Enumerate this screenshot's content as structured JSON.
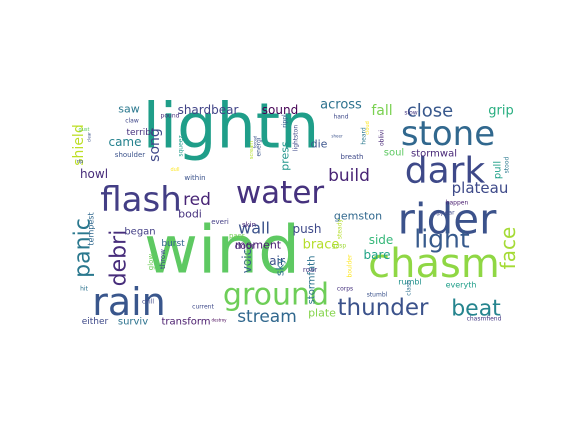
{
  "word_cloud": {
    "words": [
      {
        "text": "wind",
        "color": "#5ec962"
      },
      {
        "text": "lightn",
        "color": "#1f9e89"
      },
      {
        "text": "rider",
        "color": "#3b528b"
      },
      {
        "text": "chasm",
        "color": "#8fd744"
      },
      {
        "text": "stone",
        "color": "#31688e"
      },
      {
        "text": "dark",
        "color": "#3e4989"
      },
      {
        "text": "rain",
        "color": "#39568c"
      },
      {
        "text": "water",
        "color": "#46327e"
      },
      {
        "text": "flash",
        "color": "#433e85"
      },
      {
        "text": "ground",
        "color": "#6ece58"
      },
      {
        "text": "light",
        "color": "#375a8c"
      },
      {
        "text": "thunder",
        "color": "#3b528b"
      },
      {
        "text": "beat",
        "color": "#25848e"
      },
      {
        "text": "panic",
        "color": "#2a788e"
      },
      {
        "text": "debri",
        "color": "#472d7b"
      },
      {
        "text": "face",
        "color": "#a5db36"
      },
      {
        "text": "stream",
        "color": "#31688e"
      },
      {
        "text": "build",
        "color": "#482475"
      },
      {
        "text": "close",
        "color": "#38588c"
      },
      {
        "text": "plateau",
        "color": "#3e4a89"
      },
      {
        "text": "red",
        "color": "#482576"
      },
      {
        "text": "wall",
        "color": "#3b528b"
      },
      {
        "text": "push",
        "color": "#3e4989"
      },
      {
        "text": "shield",
        "color": "#bddf26"
      },
      {
        "text": "fall",
        "color": "#7ad151"
      },
      {
        "text": "grip",
        "color": "#28ae80"
      },
      {
        "text": "across",
        "color": "#2c728e"
      },
      {
        "text": "sound",
        "color": "#440154"
      },
      {
        "text": "shardbear",
        "color": "#414487"
      },
      {
        "text": "saw",
        "color": "#2a788e"
      },
      {
        "text": "song",
        "color": "#3f4788"
      },
      {
        "text": "came",
        "color": "#26828e"
      },
      {
        "text": "howl",
        "color": "#472c7a"
      },
      {
        "text": "began",
        "color": "#433e85"
      },
      {
        "text": "bodi",
        "color": "#46327e"
      },
      {
        "text": "moment",
        "color": "#482071"
      },
      {
        "text": "brace",
        "color": "#b5de2b"
      },
      {
        "text": "gemston",
        "color": "#31688e"
      },
      {
        "text": "side",
        "color": "#35b779"
      },
      {
        "text": "bare",
        "color": "#20a386"
      },
      {
        "text": "air",
        "color": "#3c4f8a"
      },
      {
        "text": "voic",
        "color": "#375b8d"
      },
      {
        "text": "sky",
        "color": "#2d708e"
      },
      {
        "text": "die",
        "color": "#3a548c"
      },
      {
        "text": "press",
        "color": "#1f958b"
      },
      {
        "text": "pull",
        "color": "#1fa088"
      },
      {
        "text": "stormfath",
        "color": "#2c728e"
      },
      {
        "text": "plate",
        "color": "#84d44b"
      },
      {
        "text": "surviv",
        "color": "#2c728e"
      },
      {
        "text": "transform",
        "color": "#481a6c"
      },
      {
        "text": "either",
        "color": "#3e4989"
      },
      {
        "text": "stormwal",
        "color": "#482878"
      },
      {
        "text": "soul",
        "color": "#5ec962"
      },
      {
        "text": "burst",
        "color": "#33638d"
      },
      {
        "text": "tempest",
        "color": "#31688e"
      },
      {
        "text": "door",
        "color": "#482576"
      },
      {
        "text": "roar",
        "color": "#453781"
      },
      {
        "text": "rumbl",
        "color": "#21918c"
      },
      {
        "text": "terribl",
        "color": "#46307e"
      },
      {
        "text": "glow",
        "color": "#6ece58"
      },
      {
        "text": "throw",
        "color": "#3e4989"
      },
      {
        "text": "skin",
        "color": "#482677"
      },
      {
        "text": "pass",
        "color": "#75d054"
      },
      {
        "text": "everi",
        "color": "#433e85"
      },
      {
        "text": "within",
        "color": "#3b528b"
      },
      {
        "text": "shoulder",
        "color": "#3b528b"
      },
      {
        "text": "pound",
        "color": "#472f7d"
      },
      {
        "text": "squeez",
        "color": "#1e9b8a"
      },
      {
        "text": "claw",
        "color": "#3f4788"
      },
      {
        "text": "scream",
        "color": "#b5de2b"
      },
      {
        "text": "energi",
        "color": "#3a548c"
      },
      {
        "text": "rippl",
        "color": "#365c8d"
      },
      {
        "text": "lightston",
        "color": "#3e4a89"
      },
      {
        "text": "breath",
        "color": "#3e4989"
      },
      {
        "text": "oblivi",
        "color": "#482878"
      },
      {
        "text": "hand",
        "color": "#3e4989"
      },
      {
        "text": "slow",
        "color": "#453781"
      },
      {
        "text": "heard",
        "color": "#2a788e"
      },
      {
        "text": "cloud",
        "color": "#fde725"
      },
      {
        "text": "stood",
        "color": "#2a788e"
      },
      {
        "text": "happen",
        "color": "#481d6f"
      },
      {
        "text": "everyth",
        "color": "#1f9e89"
      },
      {
        "text": "appear",
        "color": "#3e4989"
      },
      {
        "text": "clash",
        "color": "#2d708e"
      },
      {
        "text": "stumbl",
        "color": "#3b528b"
      },
      {
        "text": "chasmfiend",
        "color": "#443983"
      },
      {
        "text": "corps",
        "color": "#46327e"
      },
      {
        "text": "gasp",
        "color": "#a0da39"
      },
      {
        "text": "steady",
        "color": "#b5de2b"
      },
      {
        "text": "boulder",
        "color": "#fde725"
      },
      {
        "text": "current",
        "color": "#3e4989"
      },
      {
        "text": "destroy",
        "color": "#440154"
      },
      {
        "text": "chill",
        "color": "#3e4989"
      },
      {
        "text": "hit",
        "color": "#2c728e"
      },
      {
        "text": "rip",
        "color": "#3b528b"
      },
      {
        "text": "dull",
        "color": "#fde725"
      },
      {
        "text": "closer",
        "color": "#6ece58"
      },
      {
        "text": "forced",
        "color": "#3b528b"
      },
      {
        "text": "gust",
        "color": "#5ec962"
      },
      {
        "text": "clear",
        "color": "#3b528b"
      },
      {
        "text": "sheer",
        "color": "#3b528b"
      }
    ]
  }
}
